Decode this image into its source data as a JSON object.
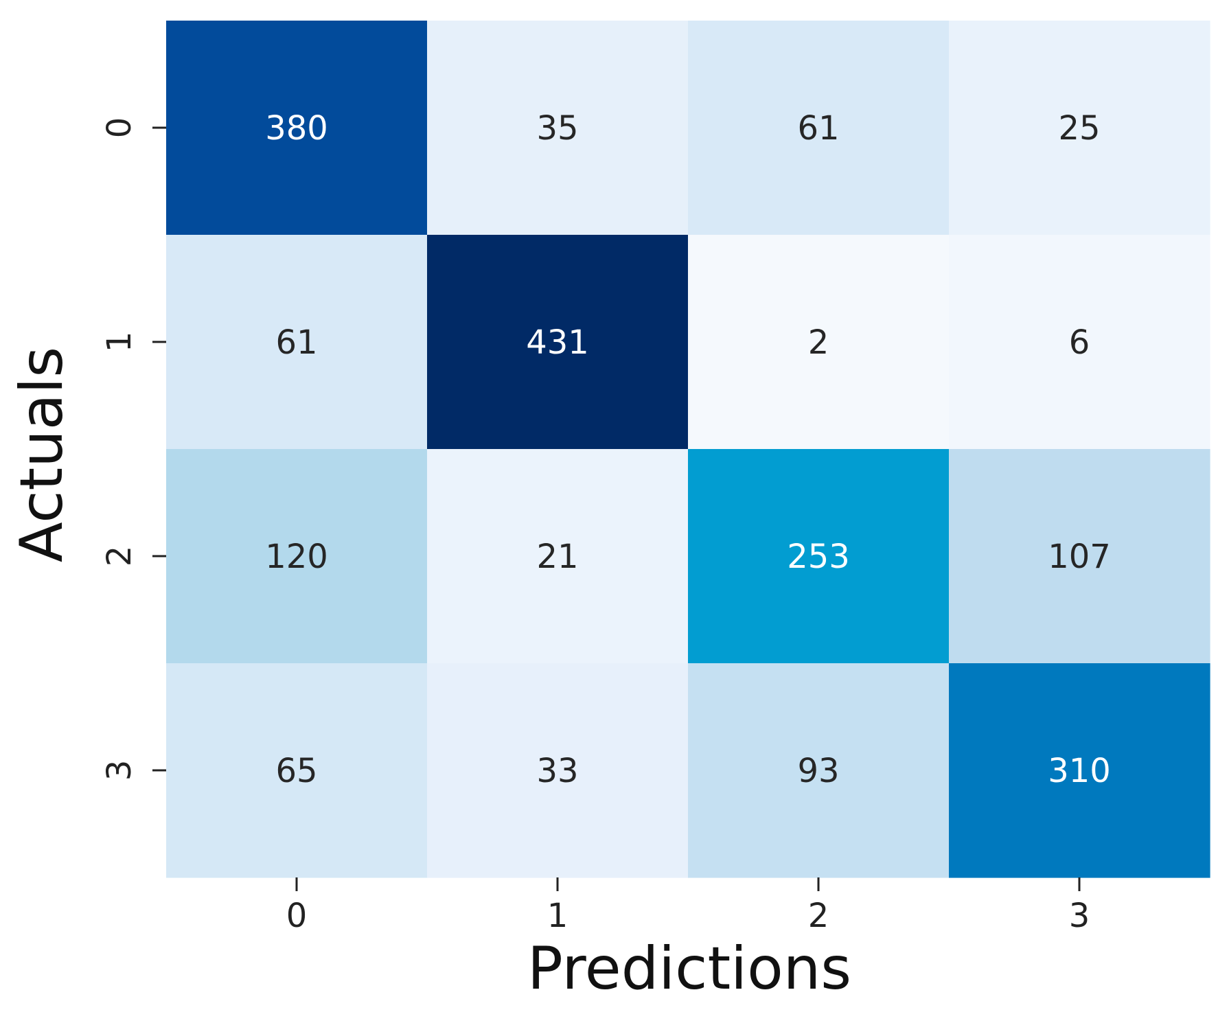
{
  "chart_data": {
    "type": "heatmap",
    "title": "",
    "xlabel": "Predictions",
    "ylabel": "Actuals",
    "x_categories": [
      "0",
      "1",
      "2",
      "3"
    ],
    "y_categories": [
      "0",
      "1",
      "2",
      "3"
    ],
    "values": [
      [
        380,
        35,
        61,
        25
      ],
      [
        61,
        431,
        2,
        6
      ],
      [
        120,
        21,
        253,
        107
      ],
      [
        65,
        33,
        93,
        310
      ]
    ],
    "cell_colors": [
      [
        "#024b9b",
        "#e6f0fa",
        "#d8e9f7",
        "#e9f2fb"
      ],
      [
        "#d8e9f7",
        "#012a66",
        "#f5f9fd",
        "#f2f7fd"
      ],
      [
        "#b3d9ec",
        "#ebf3fc",
        "#029dd1",
        "#bfdcef"
      ],
      [
        "#d5e8f6",
        "#e7f0fb",
        "#c5e0f2",
        "#0079be"
      ]
    ],
    "annotation_colors": {
      "light": "#ffffff",
      "dark": "#262626"
    },
    "colorbar": false,
    "grid": false,
    "colormap": "Blues"
  }
}
